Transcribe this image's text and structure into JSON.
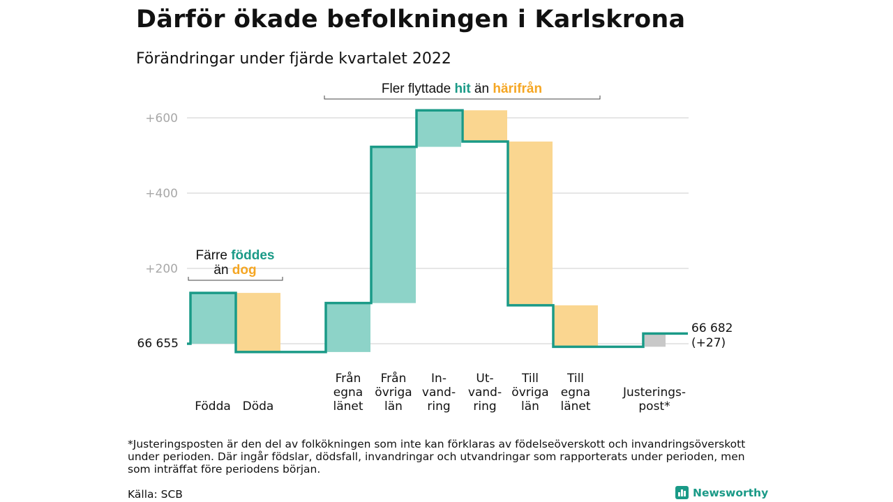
{
  "title": "Därför ökade befolkningen i Karlskrona",
  "subtitle": "Förändringar under fjärde kvartalet 2022",
  "colors": {
    "increase": "#8dd3c8",
    "decrease": "#fad690",
    "adjustment": "#c8c8c8",
    "line": "#1a9a87",
    "grid": "#dddddd",
    "hit": "#1a9a87",
    "harifran": "#f5a623"
  },
  "annotations": {
    "migration": {
      "prefix": "Fler flyttade ",
      "hit": "hit",
      "middle": " än ",
      "harifran": "härifrån"
    },
    "births": {
      "line1_prefix": "Färre ",
      "line1_highlight": "föddes",
      "line2_prefix": "än ",
      "line2_highlight": "dog"
    }
  },
  "chart_data": {
    "type": "waterfall",
    "start": {
      "label": "66 655",
      "value": 0
    },
    "end": {
      "label_line1": "66 682",
      "label_line2": "(+27)",
      "value": 27
    },
    "yticks": [
      {
        "value": 200,
        "label": "+200"
      },
      {
        "value": 400,
        "label": "+400"
      },
      {
        "value": 600,
        "label": "+600"
      }
    ],
    "ylim": [
      -30,
      640
    ],
    "grid": true,
    "steps": [
      {
        "label": [
          "Födda"
        ],
        "change": 135,
        "kind": "increase"
      },
      {
        "label": [
          "Döda"
        ],
        "change": -157,
        "kind": "decrease"
      },
      {
        "label": [
          "Från",
          "egna",
          "länet"
        ],
        "change": 130,
        "kind": "increase"
      },
      {
        "label": [
          "Från",
          "övriga",
          "län"
        ],
        "change": 415,
        "kind": "increase"
      },
      {
        "label": [
          "In-",
          "vand-",
          "ring"
        ],
        "change": 97,
        "kind": "increase"
      },
      {
        "label": [
          "Ut-",
          "vand-",
          "ring"
        ],
        "change": -83,
        "kind": "decrease"
      },
      {
        "label": [
          "Till",
          "övriga",
          "län"
        ],
        "change": -435,
        "kind": "decrease"
      },
      {
        "label": [
          "Till",
          "egna",
          "länet"
        ],
        "change": -110,
        "kind": "decrease"
      },
      {
        "label": [
          "Justerings-",
          "post*"
        ],
        "change": 35,
        "kind": "adjustment"
      }
    ]
  },
  "footnote": "*Justeringsposten är den del av folkökningen som inte kan förklaras av födelseöverskott och invandringsöverskott under perioden. Där ingår födslar, dödsfall, invandringar och utvandringar som rapporterats under perioden, men som inträffat före periodens början.",
  "source": "Källa: SCB",
  "brand": {
    "name": "Newsworthy",
    "icon": "bar-chart-icon"
  }
}
